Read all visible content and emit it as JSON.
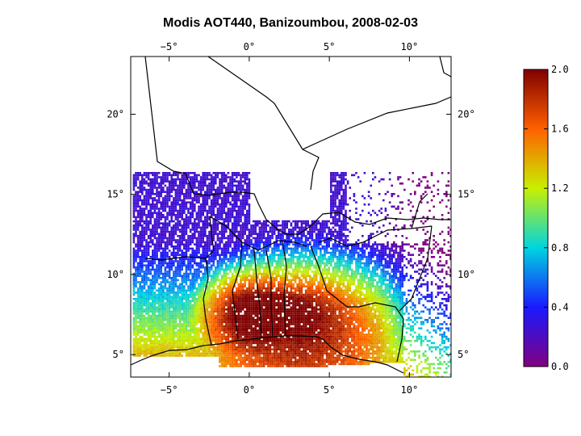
{
  "title": "Modis AOT440, Banizoumbou, 2008-02-03",
  "map": {
    "lon_range": [
      -7.4,
      12.6
    ],
    "lat_range": [
      3.6,
      23.6
    ],
    "lon_ticks": [
      {
        "value": -5,
        "label": "−5°"
      },
      {
        "value": 0,
        "label": "0°"
      },
      {
        "value": 5,
        "label": "5°"
      },
      {
        "value": 10,
        "label": "10°"
      }
    ],
    "lat_ticks": [
      {
        "value": 5,
        "label": "5°"
      },
      {
        "value": 10,
        "label": "10°"
      },
      {
        "value": 15,
        "label": "15°"
      },
      {
        "value": 20,
        "label": "20°"
      }
    ]
  },
  "colorbar": {
    "min": 0.0,
    "max": 2.0,
    "colormap": [
      "#800080",
      "#1a1aff",
      "#00d5e0",
      "#c8f000",
      "#ff6000",
      "#800000"
    ],
    "ticks": [
      {
        "value": 0.0,
        "label": "0.0"
      },
      {
        "value": 0.4,
        "label": "0.4"
      },
      {
        "value": 0.8,
        "label": "0.8"
      },
      {
        "value": 1.2,
        "label": "1.2"
      },
      {
        "value": 1.6,
        "label": "1.6"
      },
      {
        "value": 2.0,
        "label": "2.0"
      }
    ]
  }
}
